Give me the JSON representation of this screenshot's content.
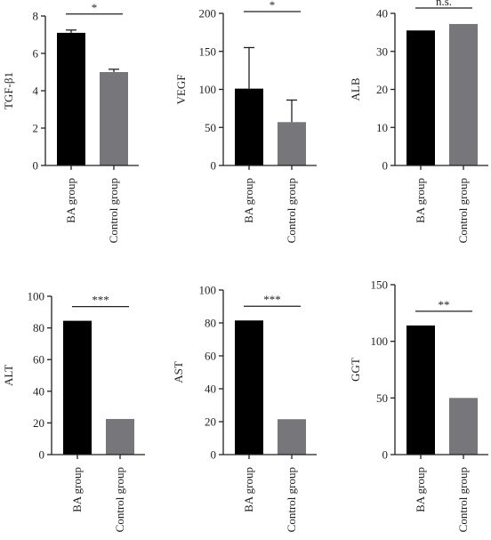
{
  "colors": {
    "ba": "#000000",
    "control": "#77767b",
    "ink": "#231f20"
  },
  "chart_data": [
    {
      "type": "bar",
      "ylabel": "TGF-β1",
      "categories": [
        "BA group",
        "Control group"
      ],
      "values": [
        7.1,
        5.0
      ],
      "errors": [
        0.15,
        0.15
      ],
      "ylim": [
        0,
        8
      ],
      "yticks": [
        "0",
        "2",
        "4",
        "6",
        "8"
      ],
      "significance": "*"
    },
    {
      "type": "bar",
      "ylabel": "VEGF",
      "categories": [
        "BA group",
        "Control group"
      ],
      "values": [
        101,
        57
      ],
      "errors": [
        54,
        29
      ],
      "ylim": [
        0,
        200
      ],
      "yticks": [
        "0",
        "50",
        "100",
        "150",
        "200"
      ],
      "significance": "*"
    },
    {
      "type": "bar",
      "ylabel": "ALB",
      "categories": [
        "BA group",
        "Control group"
      ],
      "values": [
        35.5,
        37.2
      ],
      "errors": [
        0,
        0
      ],
      "ylim": [
        0,
        40
      ],
      "yticks": [
        "0",
        "10",
        "20",
        "30",
        "40"
      ],
      "significance": "n.s."
    },
    {
      "type": "bar",
      "ylabel": "ALT",
      "categories": [
        "BA group",
        "Control group"
      ],
      "values": [
        84.5,
        22.5
      ],
      "errors": [
        0,
        0
      ],
      "ylim": [
        0,
        100
      ],
      "yticks": [
        "0",
        "20",
        "40",
        "60",
        "80",
        "100"
      ],
      "significance": "***"
    },
    {
      "type": "bar",
      "ylabel": "AST",
      "categories": [
        "BA group",
        "Control group"
      ],
      "values": [
        81.5,
        21.5
      ],
      "errors": [
        0,
        0
      ],
      "ylim": [
        0,
        100
      ],
      "yticks": [
        "0",
        "20",
        "40",
        "60",
        "80",
        "100"
      ],
      "significance": "***"
    },
    {
      "type": "bar",
      "ylabel": "GGT",
      "categories": [
        "BA group",
        "Control group"
      ],
      "values": [
        114,
        50
      ],
      "errors": [
        0,
        0
      ],
      "ylim": [
        0,
        150
      ],
      "yticks": [
        "0",
        "50",
        "100",
        "150"
      ],
      "significance": "**"
    }
  ]
}
